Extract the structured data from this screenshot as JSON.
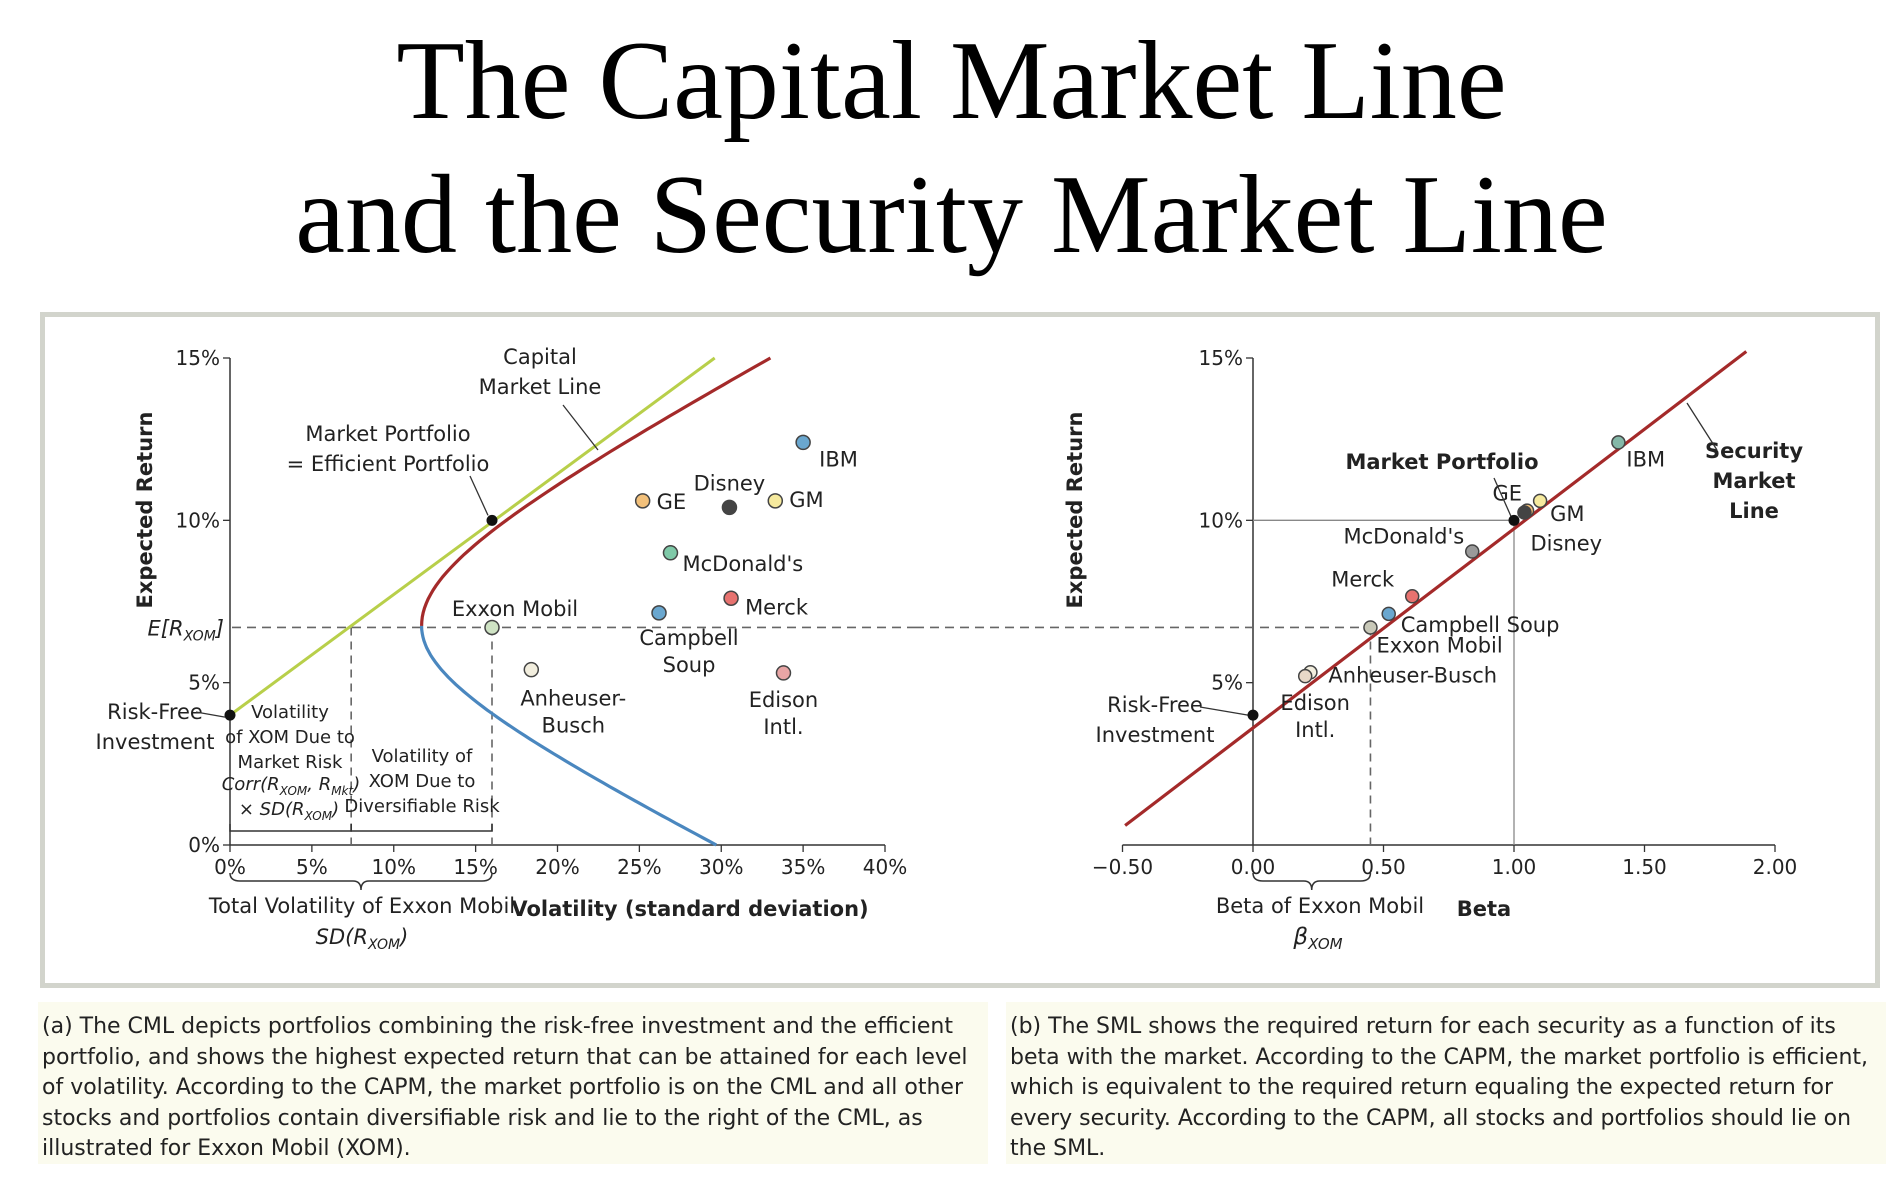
{
  "title": {
    "line1": "The Capital Market Line",
    "line2": "and the Security Market Line"
  },
  "captions": {
    "a": "(a) The CML depicts portfolios combining the risk-free investment and the efficient portfolio, and shows the highest expected return that can be attained for each level of volatility. According to the CAPM, the market portfolio is on the CML and all other stocks and portfolios contain diversifiable risk and lie to the right of the CML, as illustrated for Exxon Mobil (XOM).",
    "b": "(b) The SML shows the required return for each security as a function of its beta with the market. According to the CAPM, the market portfolio is efficient, which is equivalent to the required return equaling the expected return for every security. According to the CAPM, all stocks and portfolios should lie on the SML."
  },
  "colors": {
    "cml": "#b8cf4a",
    "frontier_upper": "#a42a2a",
    "frontier_lower": "#4a87bf",
    "sml": "#a42a2a",
    "dashed": "#666666",
    "panel_border": "#d2d4cc",
    "caption_bg": "#fbfbee"
  },
  "chart_data": [
    {
      "type": "line",
      "ylabel": "Expected Return",
      "xlabel": "Volatility (standard deviation)",
      "xlim": [
        0,
        40
      ],
      "ylim": [
        0,
        15
      ],
      "xticks": [
        "0%",
        "5%",
        "10%",
        "15%",
        "20%",
        "25%",
        "30%",
        "35%",
        "40%"
      ],
      "yticks": [
        "0%",
        "5%",
        "10%",
        "15%"
      ],
      "risk_free": {
        "x": 0,
        "y": 4,
        "label": "Risk-Free\nInvestment"
      },
      "market": {
        "x": 16,
        "y": 10,
        "label": "Market Portfolio\n= Efficient Portfolio"
      },
      "frontier": {
        "min_vol": 11.7,
        "min_vol_return": 6.75,
        "end_upper": [
          33,
          15
        ],
        "end_lower": [
          29.7,
          0
        ],
        "upper_color": "#a42a2a",
        "lower_color": "#4a87bf"
      },
      "cml": {
        "label": "Capital\nMarket Line",
        "from": [
          0,
          4
        ],
        "to": [
          29.6,
          15
        ]
      },
      "exxon": {
        "x": 16,
        "y": 6.7,
        "label": "Exxon Mobil"
      },
      "e_label": "E[R",
      "e_sub": "XOM",
      "e_close": "]",
      "points": [
        {
          "name": "IBM",
          "x": 35,
          "y": 12.4,
          "color": "#6aa7cf"
        },
        {
          "name": "GE",
          "x": 25.2,
          "y": 10.6,
          "color": "#f2c07a"
        },
        {
          "name": "Disney",
          "x": 30.5,
          "y": 10.4,
          "color": "#444444"
        },
        {
          "name": "GM",
          "x": 33.3,
          "y": 10.6,
          "color": "#f6ea9e"
        },
        {
          "name": "McDonald's",
          "x": 26.9,
          "y": 9.0,
          "color": "#7fc9a8"
        },
        {
          "name": "Merck",
          "x": 30.6,
          "y": 7.6,
          "color": "#e7726f"
        },
        {
          "name": "Campbell\nSoup",
          "x": 26.2,
          "y": 7.15,
          "color": "#6aa7cf"
        },
        {
          "name": "Anheuser-\nBusch",
          "x": 18.4,
          "y": 5.4,
          "color": "#f2eede"
        },
        {
          "name": "Edison\nIntl.",
          "x": 33.8,
          "y": 5.3,
          "color": "#e8a5a5"
        }
      ],
      "annotations": {
        "market_vol": "Volatility\nof XOM Due to\nMarket Risk",
        "corr_a": "Corr(R",
        "corr_b": "XOM",
        "corr_c": ", R",
        "corr_d": "Mkt",
        "corr_e": ")",
        "times_a": "× SD(R",
        "times_b": "XOM",
        "times_c": ")",
        "div_vol": "Volatility of\nXOM Due to\nDiversifiable Risk",
        "total_vol": "Total Volatility of Exxon Mobil",
        "sd_a": "SD(R",
        "sd_b": "XOM",
        "sd_c": ")",
        "market_risk_x": 7.4,
        "total_x": 16
      }
    },
    {
      "type": "line",
      "ylabel": "Expected Return",
      "xlabel": "Beta",
      "xlim": [
        -0.5,
        2.0
      ],
      "ylim": [
        0,
        15
      ],
      "xticks": [
        "−0.50",
        "0.00",
        "0.50",
        "1.00",
        "1.50",
        "2.00"
      ],
      "yticks": [
        "5%",
        "10%",
        "15%"
      ],
      "sml": {
        "label": "Security\nMarket\nLine",
        "from": [
          -0.49,
          0.6
        ],
        "to": [
          1.89,
          15.2
        ],
        "rf": 4,
        "slope": 6
      },
      "risk_free": {
        "x": 0,
        "y": 4,
        "label": "Risk-Free\nInvestment"
      },
      "market": {
        "x": 1,
        "y": 10,
        "label": "Market Portfolio"
      },
      "beta_label": "Beta of Exxon Mobil",
      "beta_sym_a": "β",
      "beta_sym_b": "XOM",
      "exxon_beta": 0.45,
      "points": [
        {
          "name": "IBM",
          "beta": 1.4,
          "color": "#84b8a8"
        },
        {
          "name": "GE",
          "beta": 1.05,
          "color": "#f2c07a"
        },
        {
          "name": "GM",
          "beta": 1.1,
          "color": "#f6ea9e"
        },
        {
          "name": "Disney",
          "beta": 1.04,
          "color": "#444444"
        },
        {
          "name": "McDonald's",
          "beta": 0.84,
          "color": "#9a9a9a"
        },
        {
          "name": "Merck",
          "beta": 0.61,
          "color": "#e7726f"
        },
        {
          "name": "Campbell Soup",
          "beta": 0.52,
          "color": "#6aa7cf"
        },
        {
          "name": "Exxon Mobil",
          "beta": 0.45,
          "color": "#c8c8b8"
        },
        {
          "name": "Anheuser-Busch",
          "beta": 0.22,
          "color": "#f2eede"
        },
        {
          "name": "Edison\nIntl.",
          "beta": 0.2,
          "color": "#e8d8c8"
        }
      ]
    }
  ]
}
